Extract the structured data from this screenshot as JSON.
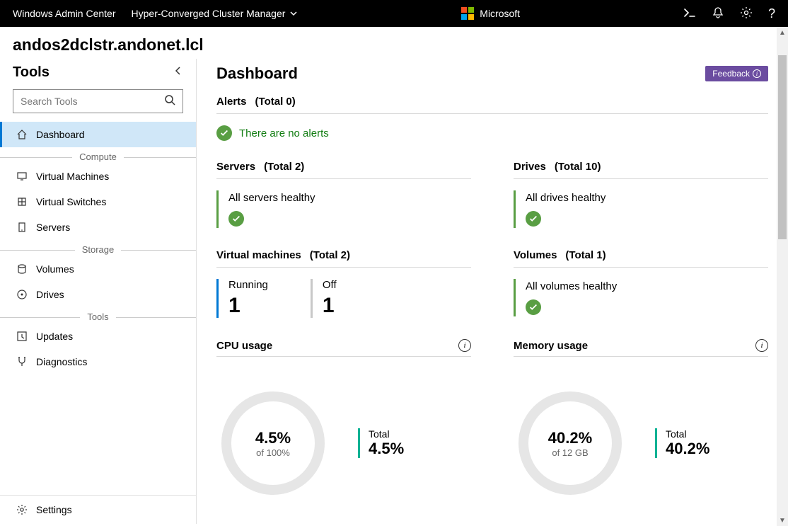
{
  "topbar": {
    "brand": "Windows Admin Center",
    "context": "Hyper-Converged Cluster Manager",
    "ms_label": "Microsoft"
  },
  "cluster_name": "andos2dclstr.andonet.lcl",
  "tools": {
    "header": "Tools",
    "search_placeholder": "Search Tools",
    "sections": {
      "compute": "Compute",
      "storage": "Storage",
      "tools": "Tools"
    },
    "items": {
      "dashboard": "Dashboard",
      "vms": "Virtual Machines",
      "vswitches": "Virtual Switches",
      "servers": "Servers",
      "volumes": "Volumes",
      "drives": "Drives",
      "updates": "Updates",
      "diagnostics": "Diagnostics",
      "settings": "Settings"
    }
  },
  "dashboard": {
    "title": "Dashboard",
    "feedback": "Feedback",
    "alerts": {
      "label": "Alerts",
      "total_label": "(Total 0)",
      "message": "There are no alerts"
    },
    "servers": {
      "label": "Servers",
      "total_label": "(Total 2)",
      "status": "All servers healthy"
    },
    "drives": {
      "label": "Drives",
      "total_label": "(Total 10)",
      "status": "All drives healthy"
    },
    "vms": {
      "label": "Virtual machines",
      "total_label": "(Total 2)",
      "running_label": "Running",
      "running_count": "1",
      "off_label": "Off",
      "off_count": "1"
    },
    "volumes": {
      "label": "Volumes",
      "total_label": "(Total 1)",
      "status": "All volumes healthy"
    },
    "cpu": {
      "label": "CPU usage",
      "percent": 4.5,
      "center_main": "4.5%",
      "center_sub": "of 100%",
      "total_label": "Total",
      "total_value": "4.5%",
      "ring_color": "#00b294",
      "track_color": "#e6e6e6",
      "stroke": 14
    },
    "memory": {
      "label": "Memory usage",
      "percent": 40.2,
      "center_main": "40.2%",
      "center_sub": "of 12 GB",
      "total_label": "Total",
      "total_value": "40.2%",
      "ring_color": "#00b294",
      "track_color": "#e6e6e6",
      "stroke": 14
    }
  },
  "colors": {
    "accent_blue": "#0078d4",
    "healthy_green": "#599e43",
    "teal": "#00b294",
    "feedback_purple": "#6b4ca0"
  }
}
